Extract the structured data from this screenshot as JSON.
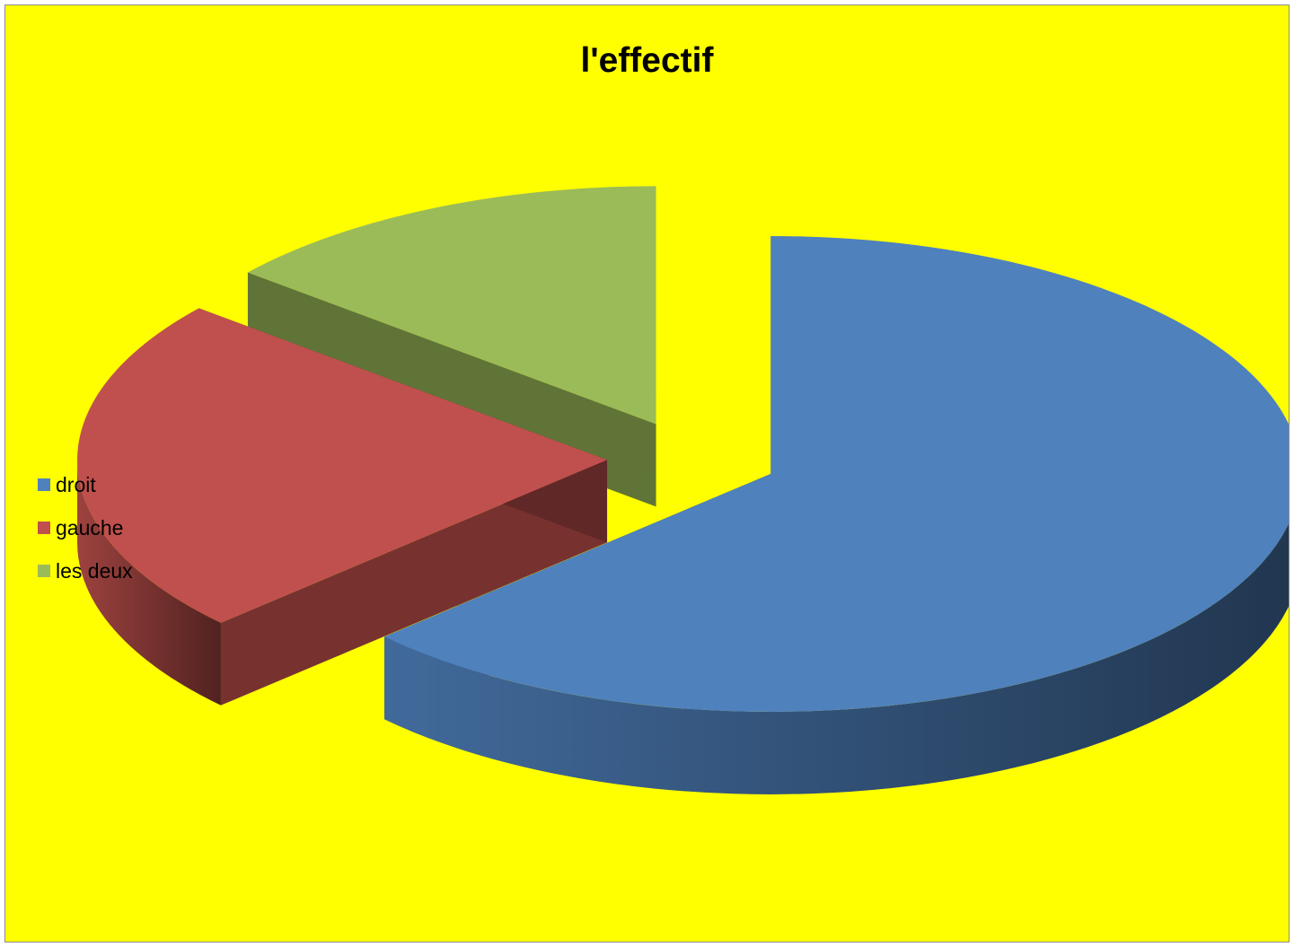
{
  "chart_data": {
    "type": "pie",
    "title": "l'effectif",
    "style": "3d-exploded",
    "background": "#ffff00",
    "legend_position": "left",
    "categories": [
      "droit",
      "gauche",
      "les deux"
    ],
    "values": [
      63,
      23,
      14
    ],
    "colors": [
      "#4f81bd",
      "#c0504d",
      "#9bbb59"
    ]
  }
}
